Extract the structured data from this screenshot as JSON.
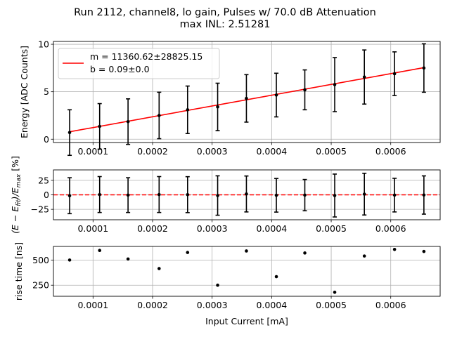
{
  "title_line1": "Run 2112, channel8, lo gain, Pulses w/ 70.0 dB Attenuation",
  "title_line2": "max INL: 2.51281",
  "chart_data": [
    {
      "type": "scatter",
      "name": "energy-panel",
      "xlabel": "",
      "ylabel": "Energy [ADC Counts]",
      "xlim": [
        3.35e-05,
        0.000683
      ],
      "ylim": [
        -0.35,
        10.3
      ],
      "yticks": [
        0,
        5,
        10
      ],
      "grid": true,
      "x": [
        6.07e-05,
        0.0001111,
        0.0001588,
        0.000211,
        0.0002588,
        0.0003093,
        0.0003576,
        0.0004079,
        0.0004557,
        0.0005059,
        0.0005557,
        0.0006064,
        0.0006557
      ],
      "y": [
        0.7,
        1.35,
        1.85,
        2.5,
        3.1,
        3.4,
        4.3,
        4.65,
        5.2,
        5.75,
        6.55,
        6.9,
        7.5
      ],
      "yerr": [
        2.4,
        2.4,
        2.4,
        2.45,
        2.5,
        2.5,
        2.5,
        2.3,
        2.1,
        2.85,
        2.85,
        2.3,
        2.55
      ],
      "fit_line": {
        "x": [
          6.07e-05,
          0.0006557
        ],
        "y": [
          0.78,
          7.54
        ],
        "color": "#ff0000"
      },
      "legend": {
        "placement": "upper-left",
        "entries": [
          "m = 11360.62±28825.15",
          "b = 0.09±0.0"
        ]
      }
    },
    {
      "type": "scatter",
      "name": "residual-panel",
      "xlabel": "",
      "ylabel": "$(E - E_{fit})/E_{max}$ [%]",
      "ylabel_parts": {
        "base": "(E − E",
        "sub1": "fit",
        "mid": ")/E",
        "sub2": "max",
        "tail": " [%]"
      },
      "xlim": [
        3.35e-05,
        0.000683
      ],
      "ylim": [
        -43,
        43
      ],
      "yticks": [
        -25,
        0,
        25
      ],
      "grid": true,
      "x": [
        6.07e-05,
        0.0001111,
        0.0001588,
        0.000211,
        0.0002588,
        0.0003093,
        0.0003576,
        0.0004079,
        0.0004557,
        0.0005059,
        0.0005557,
        0.0006064,
        0.0006557
      ],
      "y": [
        -1.5,
        0.5,
        -0.5,
        0.5,
        0.3,
        -1.2,
        1.5,
        -0.8,
        -0.5,
        -1.2,
        1.2,
        -0.5,
        -0.3
      ],
      "yerr": [
        31,
        31,
        30,
        31,
        31,
        34,
        31,
        29,
        27,
        37,
        36,
        29,
        33
      ],
      "reference_line": {
        "y": 0,
        "color": "#ff0000",
        "style": "dashed"
      }
    },
    {
      "type": "scatter",
      "name": "risetime-panel",
      "xlabel": "Input Current [mA]",
      "ylabel": "rise time [ns]",
      "xlim": [
        3.35e-05,
        0.000683
      ],
      "ylim": [
        140,
        635
      ],
      "yticks": [
        250,
        500
      ],
      "xticks": [
        0.0001,
        0.0002,
        0.0003,
        0.0004,
        0.0005,
        0.0006
      ],
      "xtick_labels": [
        "0.0001",
        "0.0002",
        "0.0003",
        "0.0004",
        "0.0005",
        "0.0006"
      ],
      "grid": true,
      "x": [
        6.07e-05,
        0.0001111,
        0.0001588,
        0.000211,
        0.0002588,
        0.0003093,
        0.0003576,
        0.0004079,
        0.0004557,
        0.0005059,
        0.0005557,
        0.0006064,
        0.0006557
      ],
      "y": [
        500,
        595,
        510,
        415,
        575,
        250,
        590,
        335,
        570,
        180,
        540,
        605,
        585
      ]
    }
  ]
}
